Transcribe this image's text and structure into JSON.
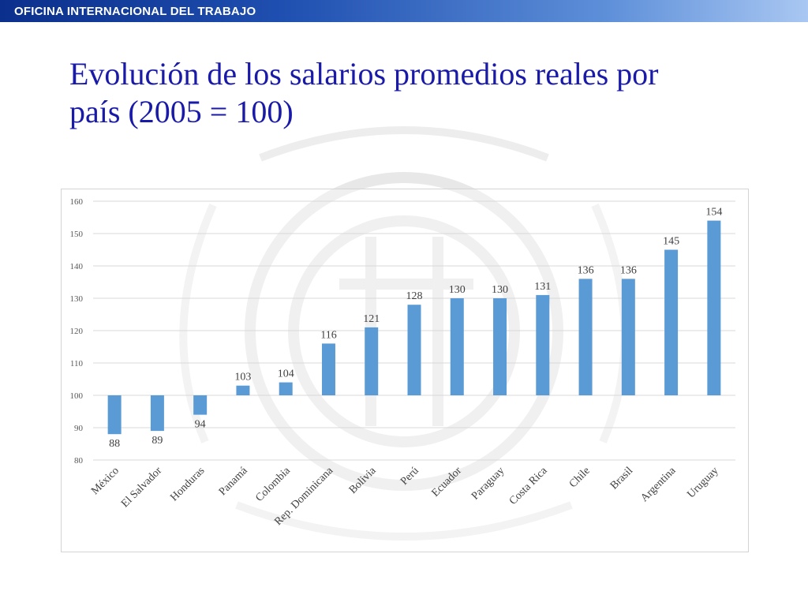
{
  "header": {
    "organization": "OFICINA INTERNACIONAL DEL TRABAJO"
  },
  "slide": {
    "title_line1": "Evolución de los salarios promedios reales por",
    "title_line2": "país (2005 = 100)"
  },
  "colors": {
    "bar": "#5b9bd5",
    "title": "#1a1aa8",
    "header": "#1f4fb0",
    "grid": "#d9d9d9"
  },
  "chart_data": {
    "type": "bar",
    "title": "",
    "xlabel": "",
    "ylabel": "",
    "baseline": 100,
    "ylim": [
      80,
      160
    ],
    "yticks": [
      80,
      90,
      100,
      110,
      120,
      130,
      140,
      150,
      160
    ],
    "grid": true,
    "legend": "none",
    "categories": [
      "México",
      "El Salvador",
      "Honduras",
      "Panamá",
      "Colombia",
      "Rep. Dominicana",
      "Bolivia",
      "Perú",
      "Ecuador",
      "Paraguay",
      "Costa Rica",
      "Chile",
      "Brasil",
      "Argentina",
      "Uruguay"
    ],
    "values": [
      88,
      89,
      94,
      103,
      104,
      116,
      121,
      128,
      130,
      130,
      131,
      136,
      136,
      145,
      154
    ]
  }
}
